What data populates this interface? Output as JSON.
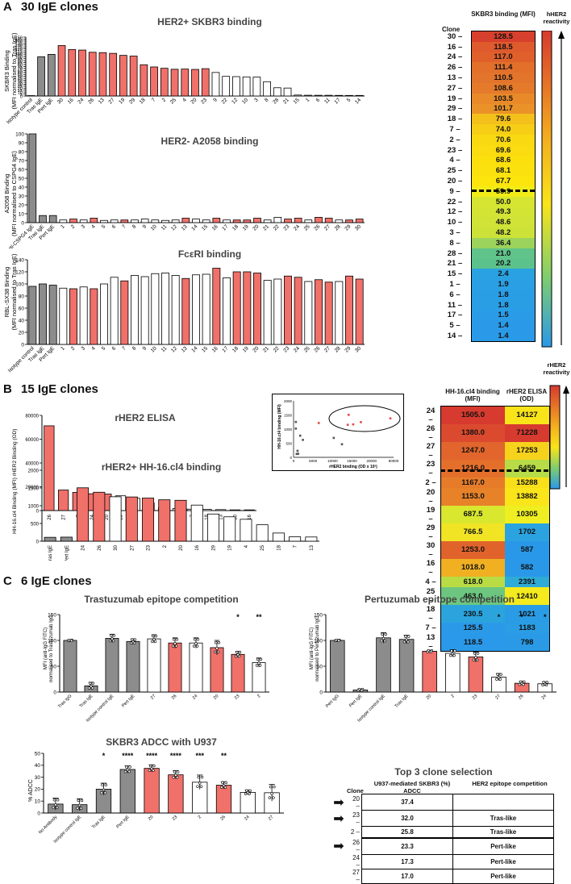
{
  "panelA": {
    "letter": "A",
    "heading": "30 IgE clones",
    "skbr3": {
      "title": "HER2+ SKBR3 binding",
      "ylabel1": "SKBR3 Binding",
      "ylabel2": "(MFI normalised to Tras IgE)",
      "ylim": [
        0,
        150
      ],
      "ticks": [
        "0",
        "5",
        "10",
        "15",
        "20",
        "25",
        "30",
        "35",
        "40",
        "45",
        "50",
        "55",
        "60",
        "65",
        "70",
        "75",
        "80",
        "85",
        "90",
        "95",
        "100",
        "105",
        "110",
        "115",
        "120",
        "125",
        "130",
        "135",
        "140",
        "145",
        "150"
      ]
    },
    "a2058": {
      "title": "HER2- A2058 binding",
      "ylabel1": "A2058 Binding",
      "ylabel2": "(MFI normalised to CSPG4 IgE)",
      "ylim": [
        0,
        100
      ],
      "ticks": [
        "0",
        "10",
        "20",
        "30",
        "40",
        "50",
        "60",
        "70",
        "80",
        "90",
        "100"
      ]
    },
    "fcer": {
      "title": "FcεRI binding",
      "ylabel1": "RBL-SX38 Binding",
      "ylabel2": "(MFI normalised to Tras IgE)",
      "ylim": [
        0,
        140
      ],
      "ticks": [
        "0",
        "20",
        "40",
        "60",
        "80",
        "100",
        "120",
        "140"
      ]
    },
    "heatmap": {
      "col_header": "SKBR3 binding (MFI)",
      "clone_header": "Clone",
      "scale_label": "hHER2 reactivity",
      "rows": [
        {
          "clone": "30",
          "value": "128.5",
          "color": "#d7402d"
        },
        {
          "clone": "16",
          "value": "118.5",
          "color": "#df5a2c"
        },
        {
          "clone": "24",
          "value": "117.0",
          "color": "#e0602c"
        },
        {
          "clone": "26",
          "value": "111.4",
          "color": "#e2702b"
        },
        {
          "clone": "13",
          "value": "110.5",
          "color": "#e3742b"
        },
        {
          "clone": "27",
          "value": "108.6",
          "color": "#e57b2a"
        },
        {
          "clone": "19",
          "value": "103.5",
          "color": "#e88a29"
        },
        {
          "clone": "29",
          "value": "101.7",
          "color": "#ea9228"
        },
        {
          "clone": "18",
          "value": "79.6",
          "color": "#f3c01c"
        },
        {
          "clone": "7",
          "value": "74.0",
          "color": "#f6ce15"
        },
        {
          "clone": "2",
          "value": "70.6",
          "color": "#f9d911"
        },
        {
          "clone": "23",
          "value": "69.6",
          "color": "#fadc10"
        },
        {
          "clone": "4",
          "value": "68.6",
          "color": "#fbe00e"
        },
        {
          "clone": "25",
          "value": "68.1",
          "color": "#fbe20e"
        },
        {
          "clone": "20",
          "value": "67.7",
          "color": "#fce40d"
        },
        {
          "clone": "9",
          "value": "59.9",
          "color": "#f1ec17"
        },
        {
          "clone": "22",
          "value": "50.0",
          "color": "#d6e531"
        },
        {
          "clone": "12",
          "value": "49.3",
          "color": "#d3e434"
        },
        {
          "clone": "10",
          "value": "48.6",
          "color": "#d0e337"
        },
        {
          "clone": "3",
          "value": "48.2",
          "color": "#cde238"
        },
        {
          "clone": "8",
          "value": "36.4",
          "color": "#9bd35c"
        },
        {
          "clone": "28",
          "value": "21.0",
          "color": "#5fc38a"
        },
        {
          "clone": "21",
          "value": "20.2",
          "color": "#5cc28c"
        },
        {
          "clone": "15",
          "value": "2.4",
          "color": "#2aa2e1"
        },
        {
          "clone": "1",
          "value": "1.9",
          "color": "#2a9fe4"
        },
        {
          "clone": "6",
          "value": "1.8",
          "color": "#2a9ee5"
        },
        {
          "clone": "11",
          "value": "1.8",
          "color": "#2a9ee5"
        },
        {
          "clone": "17",
          "value": "1.5",
          "color": "#2a9ce7"
        },
        {
          "clone": "5",
          "value": "1.4",
          "color": "#2a9ae8"
        },
        {
          "clone": "14",
          "value": "1.4",
          "color": "#2a9ae8"
        }
      ]
    }
  },
  "panelB": {
    "letter": "B",
    "heading": "15 IgE clones",
    "elisa": {
      "title": "rHER2 ELISA",
      "ylabel": "rHER2 Binding (OD)",
      "ylim": [
        0,
        80000
      ],
      "ticks": [
        "0",
        "20000",
        "40000",
        "60000",
        "80000"
      ]
    },
    "hh16": {
      "title": "rHER2+ HH-16.cl4 binding",
      "ylabel": "HH-16.cl4 Binding (MFI)",
      "ylim": [
        0,
        2000
      ],
      "ticks": [
        "0",
        "500",
        "1000",
        "1500",
        "2000"
      ]
    },
    "inset": {
      "xlabel": "rHER2 binding (OD x 10³)",
      "ylabel": "HH-16.cl4 binding (MFI)",
      "xticks": [
        "0",
        "5000",
        "10000",
        "15000",
        "20000",
        "80000"
      ],
      "yticks": [
        "0",
        "500",
        "1000",
        "1500",
        "2000"
      ]
    },
    "heatmap": {
      "col1_header": "HH-16.cl4 binding (MFI)",
      "col2_header": "rHER2 ELISA (OD)",
      "scale_label": "rHER2 reactivity",
      "rows": [
        {
          "clone": "24",
          "v1": "1505.0",
          "c1": "#d73a2f",
          "v2": "14127",
          "c2": "#f9e41a"
        },
        {
          "clone": "26",
          "v1": "1380.0",
          "c1": "#db4a2e",
          "v2": "71228",
          "c2": "#d73a2f"
        },
        {
          "clone": "27",
          "v1": "1247.0",
          "c1": "#e1652c",
          "v2": "17253",
          "c2": "#f7d21c"
        },
        {
          "clone": "23",
          "v1": "1216.0",
          "c1": "#e46f2b",
          "v2": "6459",
          "c2": "#b7dc47"
        },
        {
          "clone": "2",
          "v1": "1167.0",
          "c1": "#e67c2a",
          "v2": "15288",
          "c2": "#f9df1a"
        },
        {
          "clone": "20",
          "v1": "1153.0",
          "c1": "#e78229",
          "v2": "13882",
          "c2": "#fae41a"
        },
        {
          "clone": "19",
          "v1": "687.5",
          "c1": "#d9e72f",
          "v2": "10305",
          "c2": "#eeee22"
        },
        {
          "clone": "29",
          "v1": "766.5",
          "c1": "#f1e425",
          "v2": "1702",
          "c2": "#2aa3e0"
        },
        {
          "clone": "30",
          "v1": "1253.0",
          "c1": "#e1632c",
          "v2": "587",
          "c2": "#2a98e8"
        },
        {
          "clone": "16",
          "v1": "1018.0",
          "c1": "#f0b022",
          "v2": "582",
          "c2": "#2a98e8"
        },
        {
          "clone": "4",
          "v1": "618.0",
          "c1": "#b9dc45",
          "v2": "2391",
          "c2": "#2eabd6"
        },
        {
          "clone": "25",
          "v1": "463.0",
          "c1": "#6cc67f",
          "v2": "12410",
          "c2": "#f4ea1e"
        },
        {
          "clone": "18",
          "v1": "230.5",
          "c1": "#2ba4de",
          "v2": "1021",
          "c2": "#2a9ce5"
        },
        {
          "clone": "7",
          "v1": "125.5",
          "c1": "#2a9ae8",
          "v2": "1183",
          "c2": "#2a9de4"
        },
        {
          "clone": "13",
          "v1": "118.5",
          "c1": "#2a99e9",
          "v2": "798",
          "c2": "#2a9ae7"
        }
      ]
    }
  },
  "panelC": {
    "letter": "C",
    "heading": "6 IgE clones",
    "tras": {
      "title": "Trastuzumab epitope competition",
      "ylabel1": "MFI (anti-IgG FITC)",
      "ylabel2": "normalised to Trastuzumab IgG",
      "ticks": [
        "0",
        "50",
        "100",
        "150"
      ]
    },
    "pert": {
      "title": "Pertuzumab epitope competition",
      "ylabel1": "MFI (anti-IgG FITC)",
      "ylabel2": "normalised to Pertuzumab IgG",
      "ticks": [
        "0",
        "50",
        "100",
        "150"
      ]
    },
    "adcc": {
      "title": "SKBR3 ADCC with U937",
      "ylabel": "% ADCC",
      "ticks": [
        "0",
        "10",
        "20",
        "30",
        "40",
        "50"
      ]
    },
    "selection": {
      "title": "Top 3 clone selection",
      "clone_header": "Clone",
      "col1_header": "U937-mediated SKBR3 (%) ADCC",
      "col2_header": "HER2 epitope competition",
      "rows": [
        {
          "clone": "20",
          "adcc": "37.4",
          "epitope": "",
          "arrow": true
        },
        {
          "clone": "23",
          "adcc": "32.0",
          "epitope": "Tras-like",
          "arrow": true
        },
        {
          "clone": "2",
          "adcc": "25.8",
          "epitope": "Tras-like",
          "arrow": false
        },
        {
          "clone": "26",
          "adcc": "23.3",
          "epitope": "Pert-like",
          "arrow": true
        },
        {
          "clone": "24",
          "adcc": "17.3",
          "epitope": "Pert-like",
          "arrow": false
        },
        {
          "clone": "27",
          "adcc": "17.0",
          "epitope": "Pert-like",
          "arrow": false
        }
      ]
    }
  },
  "colors": {
    "gray": "#8c8c8c",
    "red": "#f0706a",
    "white": "#ffffff",
    "stroke": "#000000"
  },
  "chart_data": [
    {
      "id": "skbr3",
      "type": "bar",
      "title": "HER2+ SKBR3 binding",
      "ylim": [
        0,
        150
      ],
      "categories": [
        "Isotype control",
        "Tras IgE",
        "Pert IgE",
        "30",
        "16",
        "24",
        "26",
        "13",
        "27",
        "19",
        "29",
        "18",
        "7",
        "2",
        "25",
        "4",
        "20",
        "23",
        "9",
        "22",
        "12",
        "10",
        "3",
        "8",
        "28",
        "21",
        "15",
        "1",
        "6",
        "11",
        "17",
        "5",
        "14"
      ],
      "values": [
        1,
        100,
        106,
        128.5,
        118.5,
        117,
        111.4,
        110.5,
        108.6,
        103.5,
        101.7,
        79.6,
        74,
        70.6,
        68.1,
        68.6,
        67.7,
        69.6,
        59.9,
        50,
        49.3,
        48.6,
        48.2,
        36.4,
        21,
        20.2,
        2.4,
        1.9,
        1.8,
        1.8,
        1.5,
        1.4,
        1.4
      ],
      "kinds": [
        "g",
        "g",
        "g",
        "r",
        "r",
        "r",
        "r",
        "r",
        "r",
        "r",
        "r",
        "r",
        "r",
        "r",
        "r",
        "r",
        "r",
        "r",
        "w",
        "w",
        "w",
        "w",
        "w",
        "w",
        "w",
        "w",
        "w",
        "w",
        "w",
        "w",
        "w",
        "w",
        "w"
      ]
    },
    {
      "id": "a2058",
      "type": "bar",
      "title": "HER2- A2058 binding",
      "ylim": [
        0,
        100
      ],
      "categories": [
        "Anti-CSPG4 IgE",
        "Tras IgE",
        "Pert IgE",
        "1",
        "2",
        "3",
        "4",
        "5",
        "6",
        "7",
        "8",
        "9",
        "10",
        "11",
        "12",
        "13",
        "14",
        "15",
        "16",
        "17",
        "18",
        "19",
        "20",
        "21",
        "22",
        "23",
        "24",
        "25",
        "26",
        "27",
        "28",
        "29",
        "30"
      ],
      "values": [
        100,
        8,
        8,
        3,
        4,
        3,
        5,
        2.5,
        3,
        3,
        3,
        4,
        3,
        2.5,
        3,
        5,
        4,
        3,
        5,
        3,
        3,
        3,
        5,
        3,
        6,
        4,
        5,
        3,
        6,
        5,
        3,
        3,
        4
      ],
      "kinds": [
        "g",
        "g",
        "g",
        "w",
        "r",
        "w",
        "r",
        "w",
        "w",
        "r",
        "w",
        "w",
        "w",
        "w",
        "w",
        "r",
        "w",
        "w",
        "r",
        "w",
        "r",
        "r",
        "r",
        "w",
        "w",
        "r",
        "r",
        "w",
        "r",
        "r",
        "w",
        "r",
        "r"
      ]
    },
    {
      "id": "fcer",
      "type": "bar",
      "title": "FcεRI binding",
      "ylim": [
        0,
        140
      ],
      "categories": [
        "Isotype control",
        "Tras IgE",
        "Pert IgE",
        "1",
        "2",
        "3",
        "4",
        "5",
        "6",
        "7",
        "8",
        "9",
        "10",
        "11",
        "12",
        "13",
        "14",
        "15",
        "16",
        "17",
        "18",
        "19",
        "20",
        "21",
        "22",
        "23",
        "24",
        "25",
        "26",
        "27",
        "28",
        "29",
        "30"
      ],
      "values": [
        96,
        100,
        98,
        93,
        92,
        95,
        92,
        100,
        111,
        105,
        114,
        112,
        117,
        118,
        114,
        109,
        115,
        116,
        126,
        110,
        120,
        120,
        118,
        106,
        108,
        113,
        111,
        104,
        107,
        103,
        104,
        113,
        108
      ],
      "kinds": [
        "g",
        "g",
        "g",
        "w",
        "r",
        "w",
        "r",
        "w",
        "w",
        "r",
        "w",
        "w",
        "w",
        "w",
        "w",
        "r",
        "w",
        "w",
        "r",
        "w",
        "r",
        "r",
        "r",
        "w",
        "w",
        "r",
        "r",
        "w",
        "r",
        "r",
        "w",
        "r",
        "r"
      ]
    },
    {
      "id": "elisa",
      "type": "bar",
      "title": "rHER2 ELISA",
      "ylim": [
        0,
        80000
      ],
      "categories": [
        "26",
        "27",
        "2",
        "24",
        "20",
        "25",
        "19",
        "23",
        "4",
        "29",
        "7",
        "18",
        "13",
        "30",
        "16"
      ],
      "values": [
        71228,
        17253,
        15288,
        14127,
        13882,
        12410,
        10305,
        6459,
        2391,
        1702,
        1183,
        1021,
        798,
        587,
        582
      ],
      "kinds": [
        "r",
        "r",
        "r",
        "r",
        "r",
        "w",
        "w",
        "r",
        "w",
        "w",
        "w",
        "w",
        "w",
        "w",
        "w"
      ]
    },
    {
      "id": "hh16",
      "type": "bar",
      "title": "rHER2+ HH-16.cl4 binding",
      "ylim": [
        0,
        2000
      ],
      "categories": [
        "Tras IgE",
        "Pert IgE",
        "24",
        "26",
        "30",
        "27",
        "23",
        "2",
        "20",
        "16",
        "29",
        "19",
        "4",
        "25",
        "18",
        "7",
        "13"
      ],
      "values": [
        110,
        115,
        1505,
        1380,
        1253,
        1247,
        1216,
        1167,
        1153,
        1018,
        766.5,
        687.5,
        618,
        463,
        230.5,
        125.5,
        118.5
      ],
      "kinds": [
        "g",
        "g",
        "r",
        "r",
        "w",
        "r",
        "r",
        "r",
        "r",
        "w",
        "w",
        "w",
        "w",
        "w",
        "w",
        "w",
        "w"
      ]
    },
    {
      "id": "tras",
      "type": "bar",
      "title": "Trastuzumab epitope competition",
      "ylim": [
        0,
        150
      ],
      "categories": [
        "Tras IgG",
        "Tras IgE",
        "Isotype control IgE",
        "Pert IgE",
        "27",
        "26",
        "24",
        "20",
        "23",
        "2"
      ],
      "values": [
        100,
        12,
        104,
        98,
        103,
        95,
        95,
        86,
        73,
        57
      ],
      "errors": [
        1,
        7,
        8,
        5,
        8,
        10,
        10,
        14,
        6,
        9
      ],
      "kinds": [
        "g",
        "g",
        "g",
        "g",
        "w",
        "r",
        "w",
        "r",
        "r",
        "w"
      ],
      "sig": [
        "",
        "",
        "",
        "",
        "",
        "",
        "",
        "",
        "*",
        "**"
      ]
    },
    {
      "id": "pert",
      "type": "bar",
      "title": "Pertuzumab epitope competition",
      "ylim": [
        0,
        150
      ],
      "categories": [
        "Pert IgG",
        "Pert IgE",
        "Isotype control IgE",
        "Tras IgE",
        "20",
        "2",
        "23",
        "27",
        "26",
        "24"
      ],
      "values": [
        100,
        4,
        105,
        102,
        79,
        75,
        68,
        29,
        17,
        16
      ],
      "errors": [
        1,
        2,
        10,
        8,
        2,
        7,
        10,
        7,
        4,
        4
      ],
      "kinds": [
        "g",
        "g",
        "g",
        "g",
        "r",
        "w",
        "r",
        "w",
        "r",
        "w"
      ],
      "sig": [
        "",
        "",
        "",
        "",
        "",
        "",
        "",
        "*",
        "*",
        "*"
      ]
    },
    {
      "id": "adcc",
      "type": "bar",
      "title": "SKBR3 ADCC with U937",
      "ylim": [
        0,
        50
      ],
      "categories": [
        "No Antibody",
        "Isotype control IgE",
        "Tras IgE",
        "Pert IgE",
        "20",
        "23",
        "2",
        "26",
        "24",
        "27"
      ],
      "values": [
        7.5,
        7,
        20,
        36.5,
        37.4,
        32,
        25.8,
        23.3,
        17.3,
        17
      ],
      "errors": [
        5,
        5,
        5,
        3,
        3,
        3.5,
        6,
        3,
        2,
        7
      ],
      "kinds": [
        "g",
        "g",
        "g",
        "g",
        "r",
        "r",
        "w",
        "r",
        "w",
        "w"
      ],
      "sig": [
        "",
        "",
        "*",
        "****",
        "****",
        "****",
        "***",
        "**",
        "",
        ""
      ]
    },
    {
      "id": "inset",
      "type": "scatter",
      "title": "",
      "xlabel": "rHER2 binding (OD x 10³)",
      "ylabel": "HH-16.cl4 binding (MFI)",
      "x": [
        14127,
        71228,
        17253,
        6459,
        15288,
        13882,
        10305,
        1702,
        587,
        582,
        2391,
        12410,
        1021,
        1183,
        798
      ],
      "y": [
        1505,
        1380,
        1247,
        1216,
        1167,
        1153,
        687.5,
        766.5,
        1253,
        1018,
        618,
        463,
        230.5,
        125.5,
        118.5
      ]
    }
  ]
}
